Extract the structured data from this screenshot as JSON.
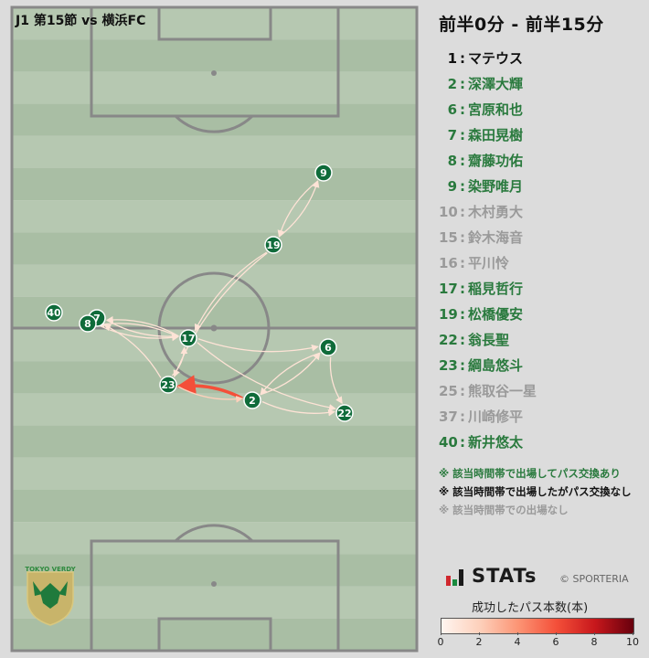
{
  "match_title": "J1 第15節 vs 横浜FC",
  "period": "前半0分 - 前半15分",
  "roster": [
    {
      "no": "1",
      "name": "マテウス",
      "status": "nopass"
    },
    {
      "no": "2",
      "name": "深澤大輝",
      "status": "passed"
    },
    {
      "no": "6",
      "name": "宮原和也",
      "status": "passed"
    },
    {
      "no": "7",
      "name": "森田晃樹",
      "status": "passed"
    },
    {
      "no": "8",
      "name": "齋藤功佑",
      "status": "passed"
    },
    {
      "no": "9",
      "name": "染野唯月",
      "status": "passed"
    },
    {
      "no": "10",
      "name": "木村勇大",
      "status": "none"
    },
    {
      "no": "15",
      "name": "鈴木海音",
      "status": "none"
    },
    {
      "no": "16",
      "name": "平川怜",
      "status": "none"
    },
    {
      "no": "17",
      "name": "稲見哲行",
      "status": "passed"
    },
    {
      "no": "19",
      "name": "松橋優安",
      "status": "passed"
    },
    {
      "no": "22",
      "name": "翁長聖",
      "status": "passed"
    },
    {
      "no": "23",
      "name": "綱島悠斗",
      "status": "passed"
    },
    {
      "no": "25",
      "name": "熊取谷一星",
      "status": "none"
    },
    {
      "no": "37",
      "name": "川崎修平",
      "status": "none"
    },
    {
      "no": "40",
      "name": "新井悠太",
      "status": "passed"
    }
  ],
  "notes": {
    "passed": "※ 該当時間帯で出場してパス交換あり",
    "nopass": "※ 該当時間帯で出場したがパス交換なし",
    "none": "※ 該当時間帯での出場なし"
  },
  "brand": "STATs",
  "copyright": "© SPORTERIA",
  "club_logo_text": "TOKYO VERDY",
  "colors": {
    "player_node": "#0f6b3a",
    "passed": "#2a7a3e",
    "nopass": "#111111",
    "none": "#9a9a9a",
    "stripe_light": "#b6c8b1",
    "stripe_dark": "#a9bea4"
  },
  "chart_data": {
    "type": "pass-network",
    "colorbar": {
      "label": "成功したパス本数(本)",
      "min": 0,
      "max": 10,
      "ticks": [
        "0",
        "2",
        "4",
        "6",
        "8",
        "10"
      ]
    },
    "players": [
      {
        "no": "9"
      },
      {
        "no": "19"
      },
      {
        "no": "40"
      },
      {
        "no": "7"
      },
      {
        "no": "8"
      },
      {
        "no": "17"
      },
      {
        "no": "6"
      },
      {
        "no": "23"
      },
      {
        "no": "2"
      },
      {
        "no": "22"
      }
    ],
    "passes": [
      {
        "from": "2",
        "to": "23",
        "count": 6
      },
      {
        "from": "23",
        "to": "2",
        "count": 2
      },
      {
        "from": "9",
        "to": "19",
        "count": 1
      },
      {
        "from": "19",
        "to": "9",
        "count": 1
      },
      {
        "from": "19",
        "to": "17",
        "count": 1
      },
      {
        "from": "19",
        "to": "23",
        "count": 1
      },
      {
        "from": "17",
        "to": "8",
        "count": 1
      },
      {
        "from": "8",
        "to": "17",
        "count": 1
      },
      {
        "from": "7",
        "to": "17",
        "count": 1
      },
      {
        "from": "17",
        "to": "7",
        "count": 1
      },
      {
        "from": "23",
        "to": "7",
        "count": 1
      },
      {
        "from": "17",
        "to": "6",
        "count": 1
      },
      {
        "from": "6",
        "to": "2",
        "count": 1
      },
      {
        "from": "2",
        "to": "6",
        "count": 1
      },
      {
        "from": "6",
        "to": "22",
        "count": 1
      },
      {
        "from": "17",
        "to": "22",
        "count": 1
      },
      {
        "from": "23",
        "to": "17",
        "count": 1
      },
      {
        "from": "2",
        "to": "22",
        "count": 1
      }
    ]
  }
}
